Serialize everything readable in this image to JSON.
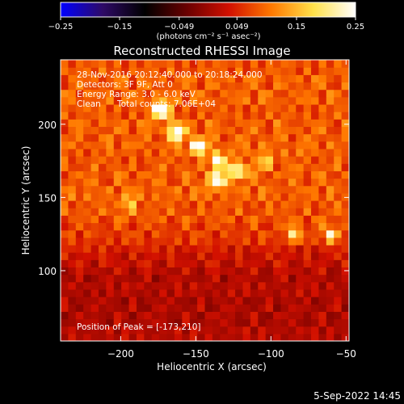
{
  "chart_data": {
    "type": "heatmap",
    "title": "Reconstructed RHESSI Image",
    "xlabel": "Heliocentric X (arcsec)",
    "ylabel": "Heliocentric Y (arcsec)",
    "xlim": [
      -240,
      -48
    ],
    "ylim": [
      52,
      244
    ],
    "x_ticks": [
      -200,
      -150,
      -100,
      -50
    ],
    "x_tick_labels": [
      "−200",
      "−150",
      "−100",
      "−50"
    ],
    "y_ticks": [
      100,
      150,
      200
    ],
    "y_tick_labels": [
      "100",
      "150",
      "200"
    ],
    "colorbar": {
      "range": [
        -0.25,
        0.25
      ],
      "ticks": [
        -0.25,
        -0.15,
        -0.049,
        0.049,
        0.15,
        0.25
      ],
      "tick_labels": [
        "−0.25",
        "−0.15",
        "−0.049",
        "0.049",
        "0.15",
        "0.25"
      ],
      "unit": "(photons cm⁻² s⁻¹ asec⁻²)",
      "colormap": [
        "#0000ff",
        "#2e0a66",
        "#000000",
        "#6a0000",
        "#d21000",
        "#ff7800",
        "#ffe14a",
        "#ffffff"
      ]
    },
    "annotations": {
      "time_range": "28-Nov-2016 20:12:40.000 to 20:18:24.000",
      "detectors": "Detectors: 3F 9F, Att 0",
      "energy": "Energy Range: 3.0 - 6.0 keV",
      "method": "Clean",
      "counts": "Total counts: 7.06E+04",
      "peak": "Position of Peak = [-173,210]"
    },
    "peak": {
      "x": -173,
      "y": 210,
      "value": 0.25
    },
    "sources": [
      {
        "x": -173,
        "y": 210,
        "value": 0.25
      },
      {
        "x": -163,
        "y": 195,
        "value": 0.2
      },
      {
        "x": -148,
        "y": 185,
        "value": 0.19
      },
      {
        "x": -135,
        "y": 175,
        "value": 0.17
      },
      {
        "x": -122,
        "y": 168,
        "value": 0.17
      },
      {
        "x": -136,
        "y": 162,
        "value": 0.19
      },
      {
        "x": -85,
        "y": 125,
        "value": 0.13
      },
      {
        "x": -60,
        "y": 125,
        "value": 0.14
      },
      {
        "x": -195,
        "y": 145,
        "value": 0.09
      },
      {
        "x": -105,
        "y": 175,
        "value": 0.1
      }
    ]
  },
  "timestamp": "5-Sep-2022 14:45"
}
